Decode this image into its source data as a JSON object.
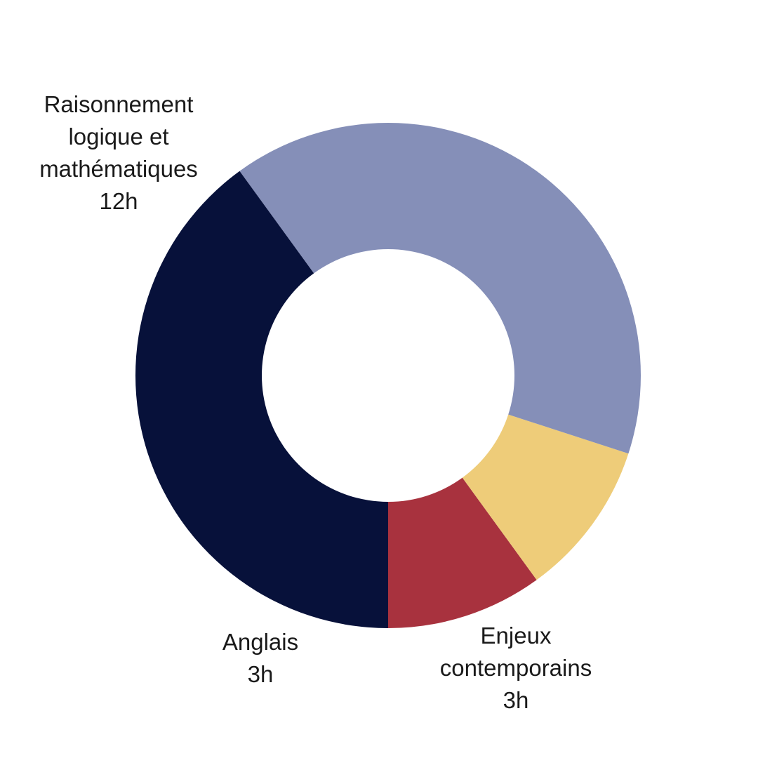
{
  "chart_data": {
    "type": "pie",
    "variant": "donut",
    "unit": "h",
    "slices": [
      {
        "label": "Enjeux contemporains",
        "label_lines": [
          "Enjeux",
          "contemporains",
          "3h"
        ],
        "value": 3,
        "color": "#a8323e"
      },
      {
        "label": "Anglais",
        "label_lines": [
          "Anglais",
          "3h"
        ],
        "value": 3,
        "color": "#eecc79"
      },
      {
        "label": "Raisonnement logique et mathématiques",
        "label_lines": [
          "Raisonnement",
          "logique et",
          "mathématiques",
          "12h"
        ],
        "value": 12,
        "color": "#858fb8"
      },
      {
        "label": "",
        "label_lines": [],
        "value": 12,
        "color": "#07113a"
      }
    ],
    "legend": "none",
    "labels": "outside"
  }
}
